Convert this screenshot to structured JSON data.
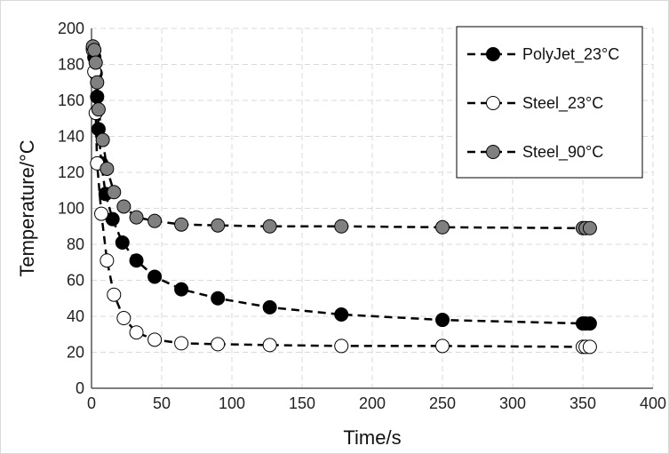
{
  "chart_data": {
    "type": "scatter",
    "xlabel": "Time/s",
    "ylabel": "Temperature/°C",
    "xlim": [
      0,
      400
    ],
    "ylim": [
      0,
      200
    ],
    "x_ticks": [
      0,
      50,
      100,
      150,
      200,
      250,
      300,
      350,
      400
    ],
    "y_ticks": [
      0,
      20,
      40,
      60,
      80,
      100,
      120,
      140,
      160,
      180,
      200
    ],
    "grid": true,
    "legend_position": "top-right",
    "series": [
      {
        "name": "PolyJet_23°C",
        "marker_fill": "#000000",
        "points": [
          [
            1,
            189
          ],
          [
            2,
            184
          ],
          [
            3,
            175
          ],
          [
            4,
            162
          ],
          [
            5,
            144
          ],
          [
            7,
            125
          ],
          [
            10,
            108
          ],
          [
            15,
            94
          ],
          [
            22,
            81
          ],
          [
            32,
            71
          ],
          [
            45,
            62
          ],
          [
            64,
            55
          ],
          [
            90,
            50
          ],
          [
            127,
            45
          ],
          [
            178,
            41
          ],
          [
            250,
            38
          ],
          [
            350,
            36
          ],
          [
            352,
            36
          ],
          [
            355,
            36
          ]
        ]
      },
      {
        "name": "Steel_23°C",
        "marker_fill": "#ffffff",
        "points": [
          [
            1,
            188
          ],
          [
            2,
            176
          ],
          [
            3,
            153
          ],
          [
            4,
            125
          ],
          [
            7,
            97
          ],
          [
            11,
            71
          ],
          [
            16,
            52
          ],
          [
            23,
            39
          ],
          [
            32,
            31
          ],
          [
            45,
            27
          ],
          [
            64,
            25
          ],
          [
            90,
            24.5
          ],
          [
            127,
            24
          ],
          [
            178,
            23.5
          ],
          [
            250,
            23.5
          ],
          [
            350,
            23
          ],
          [
            352,
            23
          ],
          [
            355,
            23
          ]
        ]
      },
      {
        "name": "Steel_90°C",
        "marker_fill": "#808080",
        "points": [
          [
            1,
            190
          ],
          [
            2,
            188
          ],
          [
            3,
            181
          ],
          [
            4,
            170
          ],
          [
            5,
            155
          ],
          [
            8,
            138
          ],
          [
            11,
            122
          ],
          [
            16,
            109
          ],
          [
            23,
            101
          ],
          [
            32,
            95
          ],
          [
            45,
            93
          ],
          [
            64,
            91
          ],
          [
            90,
            90.5
          ],
          [
            127,
            90
          ],
          [
            178,
            90
          ],
          [
            250,
            89.5
          ],
          [
            350,
            89
          ],
          [
            352,
            89
          ],
          [
            355,
            89
          ]
        ]
      }
    ]
  }
}
